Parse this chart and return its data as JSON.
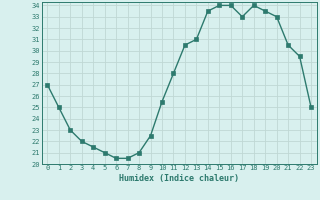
{
  "title": "",
  "xlabel": "Humidex (Indice chaleur)",
  "ylabel": "",
  "x": [
    0,
    1,
    2,
    3,
    4,
    5,
    6,
    7,
    8,
    9,
    10,
    11,
    12,
    13,
    14,
    15,
    16,
    17,
    18,
    19,
    20,
    21,
    22,
    23
  ],
  "y": [
    27,
    25,
    23,
    22,
    21.5,
    21,
    20.5,
    20.5,
    21,
    22.5,
    25.5,
    28,
    30.5,
    31,
    33.5,
    34,
    34,
    33,
    34,
    33.5,
    33,
    30.5,
    29.5,
    25
  ],
  "line_color": "#2d7a6e",
  "bg_color": "#d8f0ee",
  "grid_color": "#c0d8d4",
  "text_color": "#2d7a6e",
  "ylim": [
    20,
    34
  ],
  "yticks": [
    20,
    21,
    22,
    23,
    24,
    25,
    26,
    27,
    28,
    29,
    30,
    31,
    32,
    33,
    34
  ],
  "xticks": [
    0,
    1,
    2,
    3,
    4,
    5,
    6,
    7,
    8,
    9,
    10,
    11,
    12,
    13,
    14,
    15,
    16,
    17,
    18,
    19,
    20,
    21,
    22,
    23
  ],
  "marker_size": 2.5,
  "line_width": 1.0
}
